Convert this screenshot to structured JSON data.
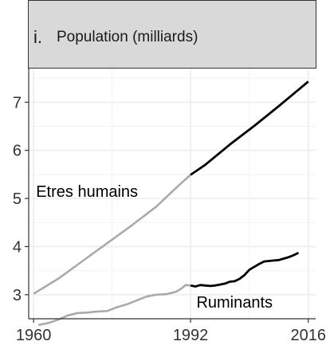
{
  "chart_data": {
    "type": "line",
    "panel_letter": "i.",
    "title": "Population (milliards)",
    "xlabel": "",
    "ylabel": "",
    "xlim": [
      1959,
      2017.5
    ],
    "ylim": [
      2.5,
      7.7
    ],
    "x_ticks": [
      1960,
      1992,
      2016
    ],
    "y_ticks": [
      3,
      4,
      5,
      6,
      7
    ],
    "grid": true,
    "colors": {
      "before_1992": "#aaaaaa",
      "after_1992": "#000000",
      "strip": "#d9d9d9"
    },
    "series": [
      {
        "name": "Etres humains",
        "x": [
          1960,
          1965,
          1970,
          1975,
          1980,
          1985,
          1990,
          1992,
          1995,
          2000,
          2005,
          2010,
          2016
        ],
        "y": [
          3.02,
          3.33,
          3.7,
          4.07,
          4.44,
          4.83,
          5.31,
          5.49,
          5.7,
          6.12,
          6.51,
          6.92,
          7.43
        ]
      },
      {
        "name": "Ruminants",
        "x": [
          1961,
          1963,
          1965,
          1967,
          1969,
          1971,
          1973,
          1975,
          1977,
          1979,
          1981,
          1983,
          1985,
          1987,
          1989,
          1990,
          1991,
          1992,
          1993,
          1994,
          1995,
          1996,
          1997,
          1998,
          1999,
          2000,
          2001,
          2002,
          2003,
          2004,
          2005,
          2006,
          2007,
          2008,
          2009,
          2010,
          2011,
          2012,
          2013,
          2014
        ],
        "y": [
          2.37,
          2.41,
          2.48,
          2.57,
          2.62,
          2.63,
          2.65,
          2.66,
          2.74,
          2.8,
          2.88,
          2.96,
          3.0,
          3.01,
          3.06,
          3.12,
          3.2,
          3.19,
          3.17,
          3.2,
          3.19,
          3.18,
          3.19,
          3.21,
          3.23,
          3.27,
          3.28,
          3.33,
          3.41,
          3.52,
          3.58,
          3.64,
          3.69,
          3.7,
          3.71,
          3.72,
          3.75,
          3.78,
          3.82,
          3.87
        ]
      }
    ]
  }
}
